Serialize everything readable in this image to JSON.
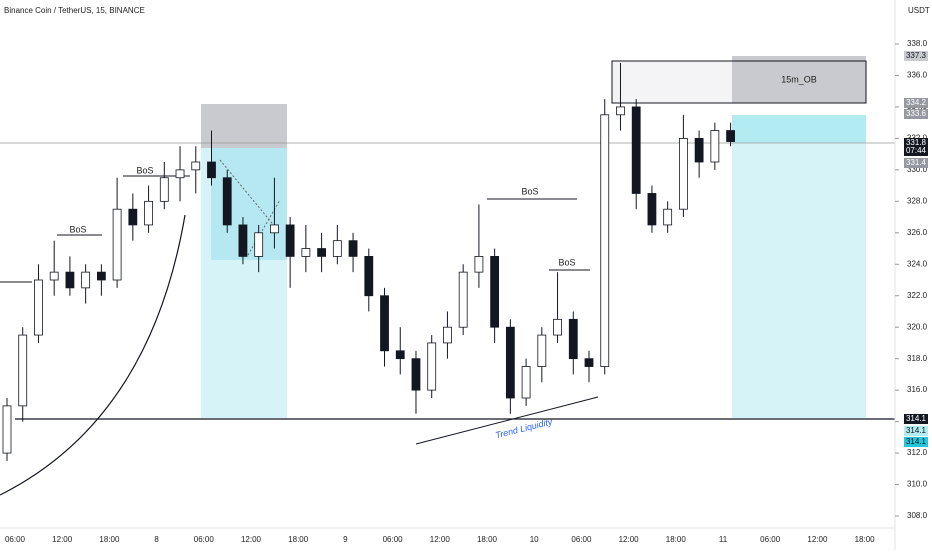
{
  "chart_data": {
    "type": "candlestick",
    "title": "Binance Coin / TetherUS, 15, BINANCE",
    "currency": "USDT",
    "up_color": "#ffffff",
    "down_color": "#131722",
    "ylim": [
      308,
      338
    ],
    "yticks": [
      {
        "value": 308,
        "label": "308.0"
      },
      {
        "value": 310,
        "label": "310.0"
      },
      {
        "value": 312,
        "label": "312.0"
      },
      {
        "value": 314,
        "label": "314.0"
      },
      {
        "value": 316,
        "label": "316.0"
      },
      {
        "value": 318,
        "label": "318.0"
      },
      {
        "value": 320,
        "label": "320.0"
      },
      {
        "value": 322,
        "label": "322.0"
      },
      {
        "value": 324,
        "label": "324.0"
      },
      {
        "value": 326,
        "label": "326.0"
      },
      {
        "value": 328,
        "label": "328.0"
      },
      {
        "value": 330,
        "label": "330.0"
      },
      {
        "value": 332,
        "label": "332.0"
      },
      {
        "value": 334,
        "label": "334.0"
      },
      {
        "value": 336,
        "label": "336.0"
      },
      {
        "value": 338,
        "label": "338.0"
      }
    ],
    "time_labels": [
      "06:00",
      "12:00",
      "18:00",
      "8",
      "06:00",
      "12:00",
      "18:00",
      "9",
      "06:00",
      "12:00",
      "18:00",
      "10",
      "06:00",
      "12:00",
      "18:00",
      "11",
      "06:00",
      "12:00",
      "18:00"
    ],
    "open": [
      312,
      315,
      319.5,
      323,
      323.5,
      322.5,
      323.5,
      323,
      327.5,
      326.5,
      328,
      329.5,
      330,
      330.5,
      329.5,
      326.5,
      324.5,
      326,
      326.5,
      324.5,
      325,
      324.5,
      325.5,
      324.5,
      322,
      318.5,
      318,
      316,
      319,
      320,
      323.5,
      324.5,
      320,
      315.5,
      317.5,
      319.5,
      320.5,
      318,
      317.5,
      333.5,
      334,
      328.5,
      326.5,
      327.5,
      332,
      330.5,
      332.5
    ],
    "high": [
      315.5,
      320,
      324,
      325.5,
      324.5,
      324,
      324,
      329.5,
      328.5,
      329,
      330.5,
      331.5,
      331.5,
      332.5,
      330,
      327,
      326.5,
      329.5,
      327,
      326.5,
      326,
      326.5,
      326,
      325,
      322.5,
      320,
      318.5,
      319.5,
      321,
      324,
      327.8,
      325,
      320.5,
      318,
      320,
      323.5,
      321,
      318.5,
      334.5,
      336.8,
      334.5,
      329,
      328,
      333.5,
      332.5,
      333,
      333
    ],
    "low": [
      311.5,
      314,
      319,
      322,
      322,
      321.5,
      322,
      322.5,
      325.5,
      326,
      327.5,
      328,
      328.5,
      329,
      326,
      324,
      323.5,
      325,
      322.5,
      323.5,
      323.5,
      324,
      323.5,
      321,
      317.5,
      317,
      314.5,
      315.5,
      318,
      319.5,
      322.5,
      319,
      314.5,
      315,
      316.5,
      319,
      317,
      316.5,
      317,
      332.5,
      327.5,
      326,
      326,
      327,
      329.5,
      330,
      331.5
    ],
    "close": [
      315,
      319.5,
      323,
      323.5,
      322.5,
      323.5,
      323,
      327.5,
      326.5,
      328,
      329.5,
      330,
      330.5,
      329.5,
      326.5,
      324.5,
      326,
      326.5,
      324.5,
      325,
      324.5,
      325.5,
      324.5,
      322,
      318.5,
      318,
      316,
      319,
      320,
      323.5,
      324.5,
      320,
      315.5,
      317.5,
      319.5,
      320.5,
      318,
      317.5,
      333.5,
      334,
      328.5,
      326.5,
      327.5,
      332,
      330.5,
      332.5,
      331.8
    ],
    "annotations": [
      "BoS",
      "BoS",
      "BoS",
      "BoS",
      "15m_OB",
      "Trend Liquidity"
    ],
    "price_tags": [
      {
        "value": 337.3,
        "label": "337.3"
      },
      {
        "value": 334.2,
        "label": "334.2"
      },
      {
        "value": 333.6,
        "label": "333.6"
      },
      {
        "value": 331.8,
        "label": "331.8"
      },
      {
        "value": 331.4,
        "label": "331.4"
      },
      {
        "value": 314.1,
        "label": "314.1"
      },
      {
        "value": 314.1,
        "label": "314.1"
      },
      {
        "value": 314.1,
        "label": "314.1"
      }
    ],
    "countdown": "07:44"
  }
}
